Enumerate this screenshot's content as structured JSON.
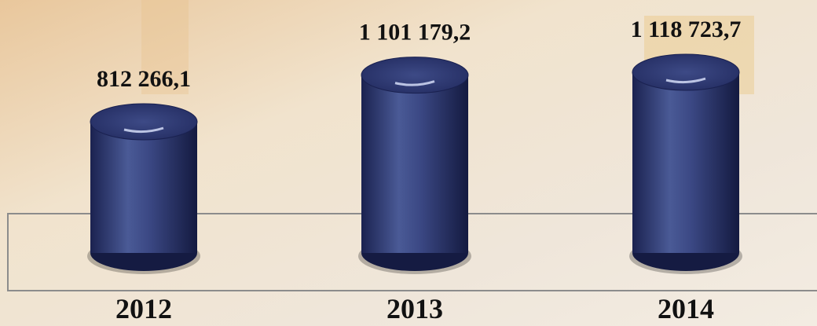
{
  "chart_data": {
    "type": "bar",
    "categories": [
      "2012",
      "2013",
      "2014"
    ],
    "values": [
      812266.1,
      1101179.2,
      1118723.7
    ],
    "value_labels": [
      "812 266,1",
      "1 101 179,2",
      "1 118 723,7"
    ],
    "color": "#2e3a6e"
  }
}
